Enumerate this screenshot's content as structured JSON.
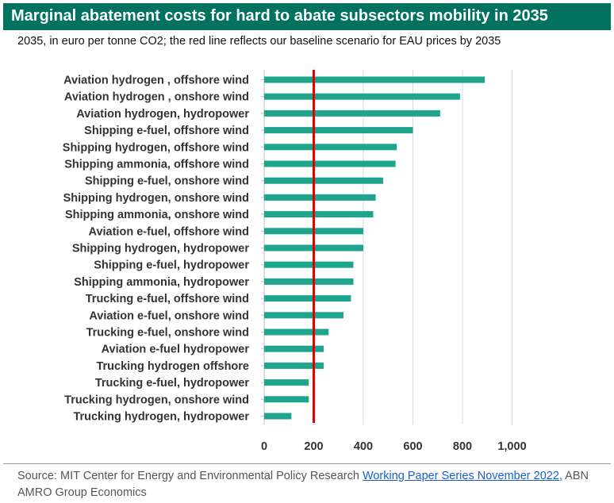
{
  "header": {
    "title": "Marginal abatement costs for hard to abate subsectors mobility in 2035",
    "subtitle": "2035, in euro per tonne CO2; the red line reflects our baseline scenario for EAU prices by 2035"
  },
  "source": {
    "prefix": "Source: MIT Center for Energy and Environmental Policy Research ",
    "link_text": "Working Paper Series November 2022,",
    "suffix": " ABN AMRO Group Economics"
  },
  "colors": {
    "bar": "#1fa58e",
    "reference_line": "#e00000",
    "title_bg": "#00725f",
    "grid": "#d9d9d9"
  },
  "chart_data": {
    "type": "bar",
    "orientation": "horizontal",
    "title": "Marginal abatement costs for hard to abate subsectors mobility in 2035",
    "xlim": [
      0,
      1000
    ],
    "xticks": [
      0,
      200,
      400,
      600,
      800,
      1000
    ],
    "xtick_labels": [
      "0",
      "200",
      "400",
      "600",
      "800",
      "1,000"
    ],
    "grid": true,
    "reference_line": {
      "value": 200,
      "color": "#e00000"
    },
    "categories": [
      "Aviation hydrogen , offshore wind",
      "Aviation hydrogen , onshore wind",
      "Aviation hydrogen, hydropower",
      "Shipping e-fuel, offshore wind",
      "Shipping hydrogen, offshore wind",
      "Shipping ammonia, offshore wind",
      "Shipping e-fuel, onshore wind",
      "Shipping hydrogen, onshore wind",
      "Shipping ammonia, onshore wind",
      "Aviation e-fuel, offshore wind",
      "Shipping hydrogen, hydropower",
      "Shipping e-fuel, hydropower",
      "Shipping ammonia, hydropower",
      "Trucking e-fuel, offshore wind",
      "Aviation e-fuel, onshore wind",
      "Trucking e-fuel, onshore wind",
      "Aviation e-fuel hydropower",
      "Trucking hydrogen offshore",
      "Trucking e-fuel, hydropower",
      "Trucking hydrogen, onshore wind",
      "Trucking hydrogen, hydropower"
    ],
    "values": [
      890,
      790,
      710,
      600,
      535,
      530,
      480,
      450,
      440,
      400,
      400,
      360,
      360,
      350,
      320,
      260,
      240,
      240,
      180,
      180,
      110
    ]
  }
}
